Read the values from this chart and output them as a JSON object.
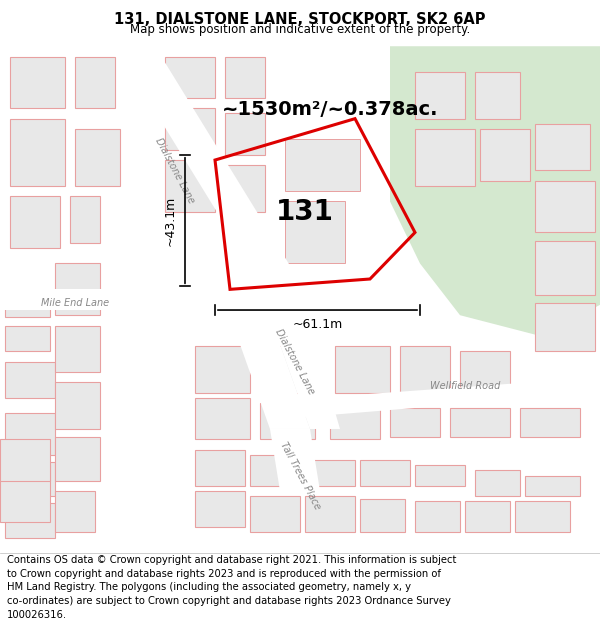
{
  "title": "131, DIALSTONE LANE, STOCKPORT, SK2 6AP",
  "subtitle": "Map shows position and indicative extent of the property.",
  "area_label": "~1530m²/~0.378ac.",
  "property_number": "131",
  "dim1_label": "~43.1m",
  "dim2_label": "~61.1m",
  "footer_text": "Contains OS data © Crown copyright and database right 2021. This information is subject\nto Crown copyright and database rights 2023 and is reproduced with the permission of\nHM Land Registry. The polygons (including the associated geometry, namely x, y\nco-ordinates) are subject to Crown copyright and database rights 2023 Ordnance Survey\n100026316.",
  "map_bg": "#f0eded",
  "green_color": "#d4e8cf",
  "road_color": "#ffffff",
  "building_fill": "#e8e8e8",
  "building_edge": "#e8a0a0",
  "property_color": "#dd0000",
  "property_lw": 2.2,
  "title_fontsize": 10.5,
  "subtitle_fontsize": 8.5,
  "footer_fontsize": 7.2,
  "area_fontsize": 14,
  "number_fontsize": 20,
  "dim_fontsize": 9,
  "road_label_fontsize": 7,
  "road_label_color": "#888888"
}
